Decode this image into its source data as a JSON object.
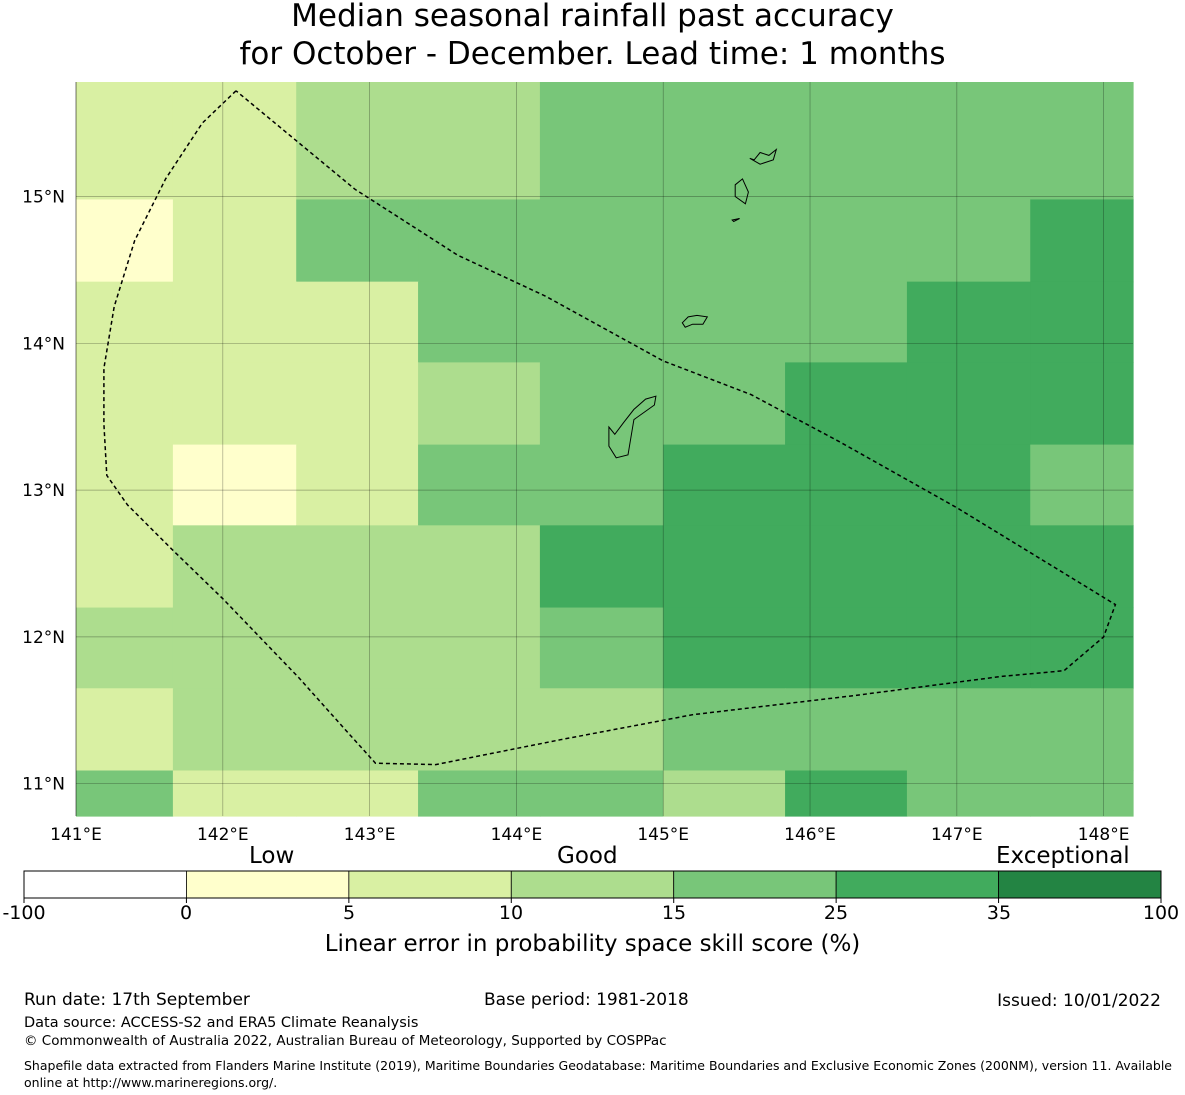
{
  "title": {
    "line1": "Median seasonal rainfall past accuracy",
    "line2": "for October - December. Lead time: 1 months"
  },
  "map": {
    "lon_ticks": [
      "141°E",
      "142°E",
      "143°E",
      "144°E",
      "145°E",
      "146°E",
      "147°E",
      "148°E"
    ],
    "lat_ticks": [
      "15°N",
      "14°N",
      "13°N",
      "12°N",
      "11°N"
    ],
    "lon_values": [
      141,
      142,
      143,
      144,
      145,
      146,
      147,
      148
    ],
    "lat_values": [
      15,
      14,
      13,
      12,
      11
    ],
    "extent": {
      "lon_min": 141.0,
      "lon_max": 148.2,
      "lat_min": 10.78,
      "lat_max": 15.78
    },
    "grid_lon_edges": [
      141.0,
      141.66,
      142.5,
      143.33,
      144.16,
      145.0,
      145.83,
      146.66,
      147.5,
      148.2
    ],
    "grid_lat_edges": [
      15.78,
      14.98,
      14.42,
      13.87,
      13.31,
      12.76,
      12.2,
      11.65,
      11.09,
      10.78
    ],
    "skill_categories": [
      [
        2,
        2,
        3,
        3,
        4,
        4,
        4,
        4,
        4
      ],
      [
        1,
        2,
        4,
        4,
        4,
        4,
        4,
        4,
        5
      ],
      [
        2,
        2,
        2,
        4,
        4,
        4,
        4,
        5,
        5
      ],
      [
        2,
        2,
        2,
        3,
        4,
        4,
        5,
        5,
        5
      ],
      [
        2,
        1,
        2,
        4,
        4,
        5,
        5,
        5,
        4
      ],
      [
        2,
        3,
        3,
        3,
        5,
        5,
        5,
        5,
        5
      ],
      [
        3,
        3,
        3,
        3,
        4,
        5,
        5,
        5,
        5
      ],
      [
        2,
        3,
        3,
        3,
        3,
        4,
        4,
        4,
        4
      ],
      [
        4,
        2,
        2,
        4,
        4,
        3,
        5,
        4,
        4
      ]
    ],
    "eez_boundary": [
      [
        142.09,
        15.72
      ],
      [
        141.86,
        15.5
      ],
      [
        141.61,
        15.12
      ],
      [
        141.4,
        14.7
      ],
      [
        141.26,
        14.25
      ],
      [
        141.19,
        13.83
      ],
      [
        141.19,
        13.45
      ],
      [
        141.21,
        13.1
      ],
      [
        141.35,
        12.9
      ],
      [
        141.65,
        12.6
      ],
      [
        142.0,
        12.26
      ],
      [
        142.52,
        11.72
      ],
      [
        142.85,
        11.35
      ],
      [
        143.04,
        11.14
      ],
      [
        143.45,
        11.13
      ],
      [
        144.3,
        11.3
      ],
      [
        145.2,
        11.47
      ],
      [
        146.3,
        11.6
      ],
      [
        147.3,
        11.73
      ],
      [
        147.73,
        11.77
      ],
      [
        148.0,
        12.0
      ],
      [
        148.08,
        12.22
      ],
      [
        147.0,
        12.88
      ],
      [
        146.2,
        13.33
      ],
      [
        145.6,
        13.65
      ],
      [
        145.0,
        13.88
      ],
      [
        144.2,
        14.32
      ],
      [
        143.6,
        14.6
      ],
      [
        142.9,
        15.05
      ],
      [
        142.09,
        15.72
      ]
    ],
    "islands": [
      [
        [
          145.59,
          15.26
        ],
        [
          145.66,
          15.22
        ],
        [
          145.75,
          15.25
        ],
        [
          145.77,
          15.32
        ],
        [
          145.72,
          15.28
        ],
        [
          145.66,
          15.3
        ],
        [
          145.62,
          15.25
        ],
        [
          145.59,
          15.26
        ]
      ],
      [
        [
          145.49,
          15.0
        ],
        [
          145.56,
          14.95
        ],
        [
          145.58,
          15.03
        ],
        [
          145.54,
          15.12
        ],
        [
          145.49,
          15.08
        ],
        [
          145.49,
          15.0
        ]
      ],
      [
        [
          145.47,
          14.84
        ],
        [
          145.52,
          14.85
        ],
        [
          145.48,
          14.83
        ],
        [
          145.47,
          14.84
        ]
      ],
      [
        [
          145.13,
          14.14
        ],
        [
          145.17,
          14.18
        ],
        [
          145.23,
          14.19
        ],
        [
          145.3,
          14.18
        ],
        [
          145.27,
          14.13
        ],
        [
          145.2,
          14.13
        ],
        [
          145.15,
          14.11
        ],
        [
          145.13,
          14.14
        ]
      ],
      [
        [
          144.63,
          13.43
        ],
        [
          144.67,
          13.38
        ],
        [
          144.73,
          13.46
        ],
        [
          144.8,
          13.55
        ],
        [
          144.88,
          13.62
        ],
        [
          144.95,
          13.64
        ],
        [
          144.94,
          13.58
        ],
        [
          144.8,
          13.48
        ],
        [
          144.76,
          13.24
        ],
        [
          144.68,
          13.22
        ],
        [
          144.63,
          13.3
        ],
        [
          144.63,
          13.43
        ]
      ]
    ]
  },
  "colorbar": {
    "word_low": "Low",
    "word_good": "Good",
    "word_exceptional": "Exceptional",
    "ticks": [
      "-100",
      "0",
      "5",
      "10",
      "15",
      "25",
      "35",
      "100"
    ],
    "colors": [
      "#ffffff",
      "#ffffcc",
      "#d9f0a3",
      "#addd8e",
      "#78c679",
      "#41ab5d",
      "#238443"
    ],
    "title": "Linear error in probability space skill score (%)"
  },
  "footer": {
    "run_date": "Run date: 17th September",
    "base_period": "Base period: 1981-2018",
    "issued": "Issued: 10/01/2022",
    "data_source": "Data source: ACCESS-S2 and ERA5 Climate Reanalysis",
    "copyright": "© Commonwealth of Australia 2022, Australian Bureau of Meteorology, Supported by COSPPac",
    "shapefile_note": "Shapefile data extracted from Flanders Marine Institute (2019), Maritime Boundaries Geodatabase: Maritime Boundaries and Exclusive Economic Zones (200NM), version 11. Available online at http://www.marineregions.org/."
  }
}
